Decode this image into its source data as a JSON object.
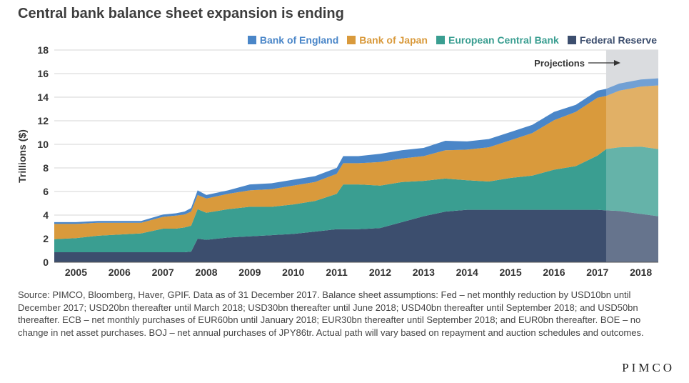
{
  "title": "Central bank balance sheet expansion is ending",
  "source": "Source: PIMCO, Bloomberg, Haver, GPIF. Data as of 31 December 2017. Balance sheet assumptions: Fed – net monthly reduction by USD10bn until December 2017; USD20bn thereafter until March 2018; USD30bn thereafter until June 2018; USD40bn thereafter until September 2018; and USD50bn thereafter. ECB – net monthly purchases of EUR60bn until January 2018; EUR30bn thereafter until September 2018; and EUR0bn thereafter. BOE – no change in net asset purchases. BOJ – net annual purchases of JPY86tr. Actual path will vary based on repayment and auction schedules and outcomes.",
  "logo": "PIMCO",
  "colors": {
    "boe": "#4a86c8",
    "boj": "#d99a3c",
    "ecb": "#3a9e91",
    "fed": "#3c4e6e",
    "projection_shade": "#d0d2d6"
  },
  "chart_data": {
    "type": "area",
    "stacked": true,
    "ylabel": "Trillions ($)",
    "ylim": [
      0,
      18
    ],
    "yticks": [
      "0",
      "2",
      "4",
      "6",
      "8",
      "10",
      "12",
      "14",
      "16",
      "18"
    ],
    "xticks": [
      "2005",
      "2006",
      "2007",
      "2008",
      "2009",
      "2010",
      "2011",
      "2012",
      "2013",
      "2014",
      "2015",
      "2016",
      "2017",
      "2018"
    ],
    "xlim": [
      2004.5,
      2018.4
    ],
    "projection_start": 2017.2,
    "projection_label": "Projections",
    "legend_position": "top-right",
    "x": [
      2004.5,
      2005.0,
      2005.5,
      2006.0,
      2006.5,
      2007.0,
      2007.3,
      2007.5,
      2007.65,
      2007.8,
      2008.0,
      2008.5,
      2009.0,
      2009.5,
      2010.0,
      2010.5,
      2011.0,
      2011.15,
      2011.5,
      2012.0,
      2012.5,
      2013.0,
      2013.5,
      2014.0,
      2014.5,
      2015.0,
      2015.5,
      2016.0,
      2016.5,
      2017.0,
      2017.2,
      2017.5,
      2018.0,
      2018.4
    ],
    "series": [
      {
        "name": "Federal Reserve",
        "key": "fed",
        "values": [
          0.85,
          0.85,
          0.85,
          0.85,
          0.85,
          0.85,
          0.85,
          0.85,
          0.9,
          2.0,
          1.9,
          2.1,
          2.2,
          2.3,
          2.4,
          2.6,
          2.8,
          2.8,
          2.8,
          2.9,
          3.4,
          3.9,
          4.3,
          4.45,
          4.45,
          4.45,
          4.45,
          4.45,
          4.45,
          4.45,
          4.4,
          4.35,
          4.1,
          3.9
        ]
      },
      {
        "name": "European Central Bank",
        "key": "ecb",
        "values": [
          1.1,
          1.2,
          1.4,
          1.5,
          1.6,
          2.0,
          2.0,
          2.1,
          2.2,
          2.5,
          2.3,
          2.4,
          2.5,
          2.4,
          2.5,
          2.6,
          3.0,
          3.8,
          3.8,
          3.6,
          3.4,
          3.0,
          2.8,
          2.5,
          2.4,
          2.7,
          2.9,
          3.4,
          3.7,
          4.6,
          5.2,
          5.4,
          5.7,
          5.7
        ]
      },
      {
        "name": "Bank of Japan",
        "key": "boj",
        "values": [
          1.3,
          1.2,
          1.1,
          1.0,
          0.9,
          1.0,
          1.1,
          1.1,
          1.2,
          1.2,
          1.2,
          1.3,
          1.4,
          1.5,
          1.6,
          1.6,
          1.7,
          1.8,
          1.8,
          2.0,
          2.0,
          2.1,
          2.4,
          2.6,
          2.9,
          3.2,
          3.6,
          4.2,
          4.6,
          4.9,
          4.5,
          4.8,
          5.1,
          5.4
        ]
      },
      {
        "name": "Bank of England",
        "key": "boe",
        "values": [
          0.15,
          0.15,
          0.15,
          0.15,
          0.15,
          0.2,
          0.2,
          0.25,
          0.3,
          0.4,
          0.3,
          0.3,
          0.5,
          0.5,
          0.5,
          0.5,
          0.5,
          0.6,
          0.6,
          0.7,
          0.7,
          0.7,
          0.8,
          0.7,
          0.7,
          0.7,
          0.7,
          0.7,
          0.6,
          0.6,
          0.6,
          0.6,
          0.6,
          0.6
        ]
      }
    ]
  }
}
